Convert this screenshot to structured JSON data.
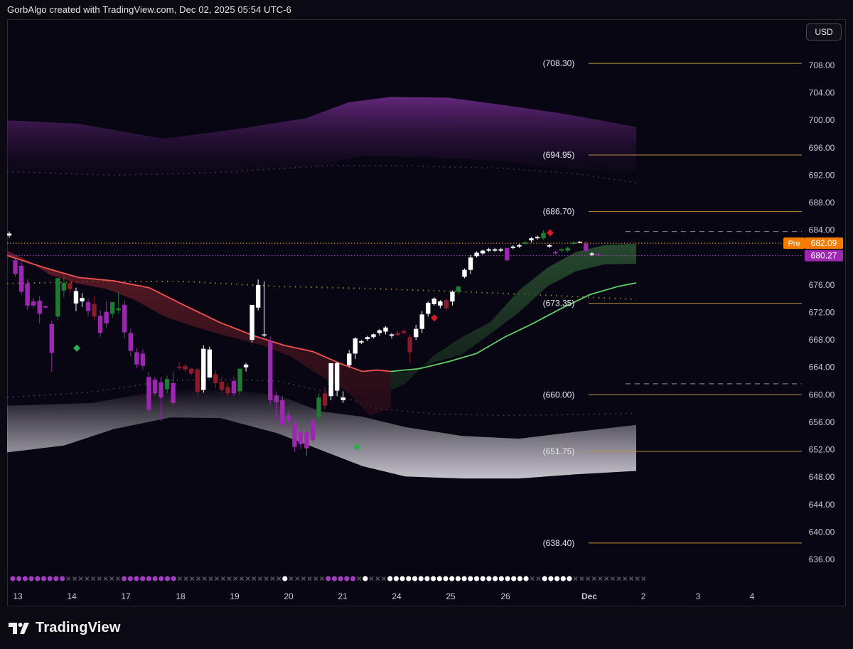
{
  "header": {
    "text": "GorbAlgo created with TradingView.com, Dec 02, 2025 05:54 UTC-6"
  },
  "currency_button": {
    "label": "USD"
  },
  "footer": {
    "brand": "TradingView",
    "logo_icon": "tradingview-logo-icon"
  },
  "colors": {
    "background": "#090613",
    "bull_candle": "#ffffff",
    "bear_candle": "#9c27b0",
    "dark_bull": "#1f7a32",
    "dark_bear": "#8b1a2a",
    "level_line": "#b8923a",
    "red_ma": "#f0524f",
    "green_ma": "#5fcf6a",
    "pre_badge": "#f57c00",
    "last_badge": "#9c27b0"
  },
  "chart_data": {
    "type": "candlestick",
    "title": "",
    "ylim": [
      633,
      713
    ],
    "y_ticks": [
      "708.00",
      "704.00",
      "700.00",
      "696.00",
      "692.00",
      "688.00",
      "684.00",
      "680.00",
      "676.00",
      "672.00",
      "668.00",
      "664.00",
      "660.00",
      "656.00",
      "652.00",
      "648.00",
      "644.00",
      "640.00",
      "636.00"
    ],
    "x_tick_labels": [
      "13",
      "14",
      "17",
      "18",
      "19",
      "20",
      "21",
      "24",
      "25",
      "26",
      "Dec",
      "2",
      "3",
      "4"
    ],
    "levels": [
      {
        "label": "(708.30)",
        "value": 708.3
      },
      {
        "label": "(694.95)",
        "value": 694.95
      },
      {
        "label": "(686.70)",
        "value": 686.7
      },
      {
        "label": "(673.35)",
        "value": 673.35
      },
      {
        "label": "(660.00)",
        "value": 660.0
      },
      {
        "label": "(651.75)",
        "value": 651.75
      },
      {
        "label": "(638.40)",
        "value": 638.4
      }
    ],
    "dashed_levels": [
      683.8,
      661.6
    ],
    "price_tags": [
      {
        "label": "Pre",
        "value": "682.09",
        "y": 682.09
      },
      {
        "label": "",
        "value": "680.27",
        "y": 680.27
      }
    ],
    "candles": [
      [
        683.5,
        683.2,
        683.8,
        682.9,
        "u"
      ],
      [
        679.6,
        677.6,
        679.8,
        677.2,
        "d"
      ],
      [
        678.8,
        675.0,
        679.6,
        674.6,
        "d"
      ],
      [
        676.2,
        673.0,
        676.8,
        672.4,
        "d"
      ],
      [
        673.6,
        673.0,
        674.1,
        672.7,
        "d"
      ],
      [
        673.7,
        671.8,
        674.4,
        670.4,
        "d"
      ],
      [
        672.7,
        672.9,
        673.0,
        672.6,
        "d"
      ],
      [
        670.3,
        666.1,
        670.8,
        663.4,
        "d"
      ],
      [
        671.4,
        677.0,
        676.4,
        670.8,
        "U"
      ],
      [
        676.3,
        675.2,
        677.2,
        674.2,
        "U"
      ],
      [
        675.4,
        676.3,
        676.8,
        674.8,
        "r"
      ],
      [
        675.1,
        673.3,
        675.6,
        672.2,
        "u"
      ],
      [
        674.1,
        673.6,
        674.8,
        672.8,
        "u"
      ],
      [
        673.5,
        672.2,
        674.0,
        671.4,
        "d"
      ],
      [
        673.2,
        671.4,
        674.4,
        670.8,
        "r"
      ],
      [
        671.5,
        669.0,
        672.3,
        668.4,
        "d"
      ],
      [
        672.1,
        670.4,
        673.6,
        669.8,
        "d"
      ],
      [
        671.8,
        673.5,
        673.5,
        671.2,
        "U"
      ],
      [
        672.3,
        672.6,
        675.0,
        671.8,
        "U"
      ],
      [
        673.1,
        669.1,
        673.7,
        668.2,
        "d"
      ],
      [
        669.0,
        666.4,
        669.6,
        665.6,
        "d"
      ],
      [
        666.2,
        664.4,
        666.8,
        663.9,
        "d"
      ],
      [
        666.0,
        664.2,
        666.6,
        663.6,
        "d"
      ],
      [
        662.6,
        657.8,
        663.3,
        657.0,
        "d"
      ],
      [
        662.2,
        660.2,
        662.6,
        659.8,
        "d"
      ],
      [
        661.8,
        659.6,
        662.6,
        656.2,
        "d"
      ],
      [
        660.8,
        662.3,
        662.8,
        660.2,
        "U"
      ],
      [
        661.7,
        658.8,
        663.3,
        658.4,
        "d"
      ],
      [
        663.9,
        664.1,
        664.8,
        663.6,
        "r"
      ],
      [
        663.7,
        664.2,
        664.5,
        663.3,
        "r"
      ],
      [
        663.1,
        663.8,
        663.9,
        662.8,
        "r"
      ],
      [
        663.7,
        660.4,
        664.0,
        659.8,
        "r"
      ],
      [
        660.7,
        666.7,
        667.2,
        660.3,
        "u"
      ],
      [
        662.5,
        666.6,
        667.0,
        662.5,
        "u"
      ],
      [
        663.0,
        661.7,
        663.6,
        661.0,
        "r"
      ],
      [
        661.9,
        660.7,
        662.6,
        660.2,
        "r"
      ],
      [
        661.1,
        660.2,
        661.7,
        659.8,
        "r"
      ],
      [
        662.0,
        660.2,
        662.6,
        659.8,
        "d"
      ],
      [
        660.5,
        663.8,
        663.2,
        660.0,
        "U"
      ],
      [
        664.0,
        664.4,
        664.6,
        663.4,
        "u"
      ],
      [
        668.0,
        673.1,
        669.2,
        667.6,
        "u"
      ],
      [
        676.0,
        672.7,
        676.8,
        672.3,
        "u"
      ],
      [
        668.8,
        668.8,
        676.5,
        668.4,
        "u"
      ],
      [
        667.8,
        659.2,
        668.5,
        658.4,
        "d"
      ],
      [
        659.9,
        658.9,
        660.5,
        656.5,
        "d"
      ],
      [
        659.2,
        655.6,
        659.8,
        654.6,
        "d"
      ],
      [
        657.0,
        656.2,
        657.6,
        655.0,
        "d"
      ],
      [
        655.8,
        652.4,
        656.4,
        651.7,
        "d"
      ],
      [
        654.6,
        652.8,
        655.2,
        652.1,
        "d"
      ],
      [
        654.5,
        652.2,
        655.6,
        651.1,
        "d"
      ],
      [
        653.4,
        656.2,
        656.6,
        653.0,
        "d"
      ],
      [
        656.8,
        659.6,
        660.2,
        655.9,
        "U"
      ],
      [
        660.2,
        658.4,
        661.2,
        657.8,
        "r"
      ],
      [
        659.8,
        664.6,
        664.6,
        659.2,
        "u"
      ],
      [
        660.6,
        664.6,
        664.8,
        659.8,
        "u"
      ],
      [
        659.2,
        659.6,
        660.5,
        658.8,
        "u"
      ],
      [
        664.3,
        666.0,
        666.5,
        664.0,
        "u"
      ],
      [
        666.0,
        668.2,
        668.4,
        665.2,
        "u"
      ],
      [
        667.6,
        667.8,
        668.0,
        667.4,
        "u"
      ],
      [
        668.1,
        668.4,
        668.6,
        667.8,
        "u"
      ],
      [
        668.4,
        668.8,
        668.9,
        668.2,
        "u"
      ],
      [
        669.0,
        669.4,
        669.6,
        668.6,
        "u"
      ],
      [
        669.2,
        669.8,
        670.0,
        668.8,
        "u"
      ],
      [
        668.6,
        668.8,
        669.0,
        668.2,
        "u"
      ],
      [
        669.0,
        668.7,
        669.4,
        668.5,
        "r"
      ],
      [
        669.0,
        669.3,
        669.6,
        668.8,
        "r"
      ],
      [
        668.4,
        666.2,
        668.7,
        664.7,
        "r"
      ],
      [
        668.4,
        669.6,
        670.2,
        668.0,
        "u"
      ],
      [
        669.6,
        671.7,
        672.2,
        669.0,
        "u"
      ],
      [
        671.8,
        673.4,
        673.6,
        671.4,
        "u"
      ],
      [
        673.2,
        674.0,
        674.2,
        673.0,
        "u"
      ],
      [
        673.0,
        673.6,
        673.8,
        672.6,
        "u"
      ],
      [
        673.8,
        672.6,
        674.0,
        672.2,
        "r"
      ],
      [
        673.6,
        675.0,
        675.2,
        673.0,
        "u"
      ],
      [
        675.0,
        675.8,
        675.9,
        674.6,
        "U"
      ],
      [
        677.2,
        678.2,
        678.4,
        677.0,
        "u"
      ],
      [
        678.2,
        680.0,
        680.4,
        677.6,
        "u"
      ],
      [
        680.2,
        680.7,
        680.9,
        680.0,
        "u"
      ],
      [
        680.6,
        681.0,
        681.2,
        680.4,
        "u"
      ],
      [
        681.0,
        681.2,
        681.4,
        680.8,
        "u"
      ],
      [
        681.0,
        681.2,
        681.4,
        680.8,
        "u"
      ],
      [
        681.0,
        681.2,
        681.4,
        680.8,
        "u"
      ],
      [
        679.6,
        681.4,
        681.4,
        679.4,
        "d"
      ],
      [
        681.4,
        681.6,
        681.8,
        681.2,
        "u"
      ],
      [
        681.6,
        681.8,
        682.0,
        681.4,
        "u"
      ],
      [
        682.0,
        682.2,
        682.4,
        681.8,
        "U"
      ],
      [
        682.5,
        682.8,
        683.0,
        682.2,
        "u"
      ],
      [
        682.8,
        683.0,
        683.2,
        682.6,
        "u"
      ],
      [
        682.8,
        683.6,
        684.0,
        682.6,
        "U"
      ],
      [
        681.6,
        681.8,
        682.0,
        681.4,
        "u"
      ],
      [
        680.6,
        680.8,
        681.0,
        680.4,
        "d"
      ],
      [
        681.0,
        681.2,
        681.4,
        680.8,
        "U"
      ],
      [
        681.0,
        681.4,
        681.6,
        680.8,
        "U"
      ],
      [
        682.0,
        682.2,
        682.4,
        681.8,
        "U"
      ],
      [
        682.2,
        682.3,
        682.4,
        682.1,
        "u"
      ],
      [
        682.0,
        681.0,
        682.4,
        680.8,
        "d"
      ],
      [
        680.6,
        680.4,
        680.8,
        680.2,
        "u"
      ],
      [
        680.5,
        680.4,
        680.8,
        680.2,
        "d"
      ]
    ],
    "signal_dots": "mmmmmmmmmxxxxxxxxxmmmmmmmmmxxxxxxxxxxxxxxxxxwxxxxxxmmmmmxwxxxwwwwwwwwwwwwwwwwwwwwwwwxxwwwwwxxxxxxxxxxxx"
  }
}
